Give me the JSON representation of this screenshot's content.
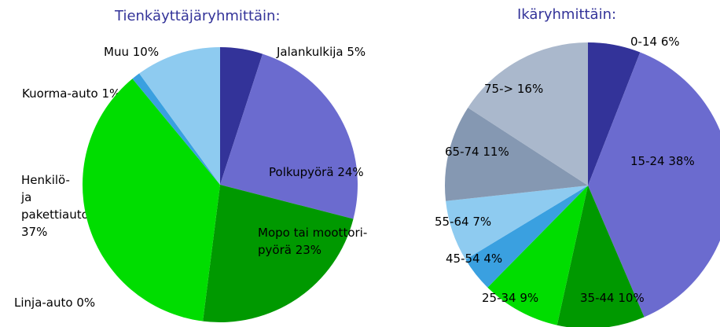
{
  "chart_data": [
    {
      "type": "pie",
      "title": "Tienkäyttäjäryhmittäin:",
      "categories": [
        "Jalankulkija",
        "Polkupyörä",
        "Mopo tai moottori-pyörä",
        "Henkilö- ja pakettiauto",
        "Linja-auto",
        "Kuorma-auto",
        "Muu"
      ],
      "values": [
        5,
        24,
        23,
        37,
        0,
        1,
        10
      ],
      "value_labels": [
        "5%",
        "24%",
        "23%",
        "37%",
        "0%",
        "1%",
        "10%"
      ],
      "colors": [
        "#333399",
        "#6b6bcf",
        "#009900",
        "#00dd00",
        "#2a6fd0",
        "#3aa0e0",
        "#8ecbf0"
      ]
    },
    {
      "type": "pie",
      "title": "Ikäryhmittäin:",
      "categories": [
        "0-14",
        "15-24",
        "35-44",
        "25-34",
        "45-54",
        "55-64",
        "65-74",
        "75->"
      ],
      "values": [
        6,
        38,
        10,
        9,
        4,
        7,
        11,
        16
      ],
      "value_labels": [
        "6%",
        "38%",
        "10%",
        "9%",
        "4%",
        "7%",
        "11%",
        "16%"
      ],
      "colors": [
        "#333399",
        "#6b6bcf",
        "#009900",
        "#00dd00",
        "#3aa0e0",
        "#8ecbf0",
        "#8598b2",
        "#aab8cc"
      ]
    }
  ]
}
